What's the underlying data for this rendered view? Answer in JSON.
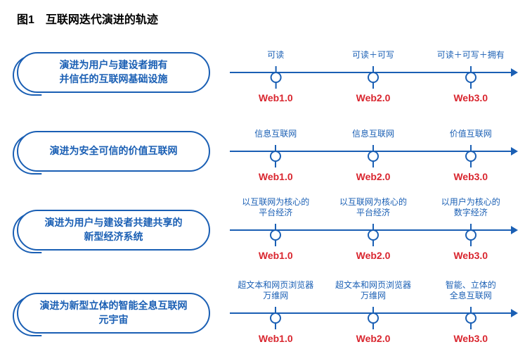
{
  "title": "图1　互联网迭代演进的轨迹",
  "colors": {
    "blue": "#1a5fb4",
    "red": "#d9262f",
    "axis": "#1a5fb4"
  },
  "nodeX": [
    16,
    50,
    84
  ],
  "rowTops": [
    48,
    160,
    272,
    390
  ],
  "rows": [
    {
      "pill": [
        "演进为用户与建设者拥有",
        "并信任的互联网基础设施"
      ],
      "nodes": [
        {
          "top": [
            "可读"
          ],
          "bot": "Web1.0"
        },
        {
          "top": [
            "可读＋可写"
          ],
          "bot": "Web2.0"
        },
        {
          "top": [
            "可读＋可写＋拥有"
          ],
          "bot": "Web3.0"
        }
      ]
    },
    {
      "pill": [
        "演进为安全可信的价值互联网"
      ],
      "nodes": [
        {
          "top": [
            "信息互联网"
          ],
          "bot": "Web1.0"
        },
        {
          "top": [
            "信息互联网"
          ],
          "bot": "Web2.0"
        },
        {
          "top": [
            "价值互联网"
          ],
          "bot": "Web3.0"
        }
      ]
    },
    {
      "pill": [
        "演进为用户与建设者共建共享的",
        "新型经济系统"
      ],
      "nodes": [
        {
          "top": [
            "以互联网为核心的",
            "平台经济"
          ],
          "bot": "Web1.0"
        },
        {
          "top": [
            "以互联网为核心的",
            "平台经济"
          ],
          "bot": "Web2.0"
        },
        {
          "top": [
            "以用户为核心的",
            "数字经济"
          ],
          "bot": "Web3.0"
        }
      ]
    },
    {
      "pill": [
        "演进为新型立体的智能全息互联网",
        "元宇宙"
      ],
      "nodes": [
        {
          "top": [
            "超文本和网页浏览器",
            "万维网"
          ],
          "bot": "Web1.0"
        },
        {
          "top": [
            "超文本和网页浏览器",
            "万维网"
          ],
          "bot": "Web2.0"
        },
        {
          "top": [
            "智能、立体的",
            "全息互联网"
          ],
          "bot": "Web3.0"
        }
      ]
    }
  ]
}
